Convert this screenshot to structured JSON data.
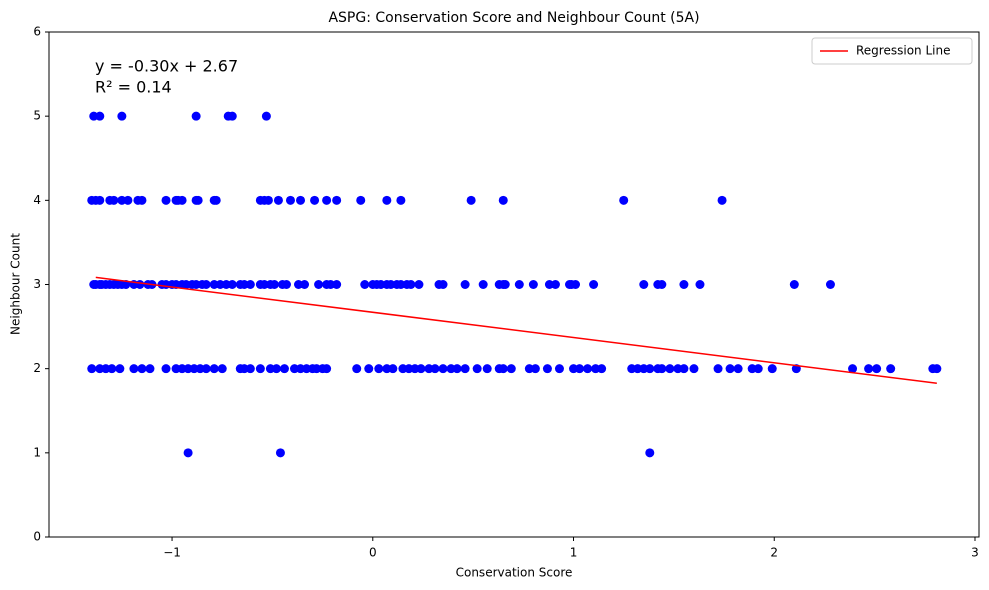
{
  "chart_data": {
    "type": "scatter",
    "title": "ASPG: Conservation Score and Neighbour Count (5A)",
    "x_label": "Conservation Score",
    "y_label": "Neighbour Count",
    "annotations": [
      "y = -0.30x + 2.67",
      "R² = 0.14"
    ],
    "color": "#0000ff",
    "x": [
      -1.39,
      -1.36,
      -1.25,
      -0.88,
      -0.72,
      -0.7,
      -0.53,
      -1.4,
      -1.38,
      -1.36,
      -1.31,
      -1.29,
      -1.25,
      -1.22,
      -1.17,
      -1.15,
      -1.03,
      -0.98,
      -0.97,
      -0.95,
      -0.88,
      -0.87,
      -0.79,
      -0.78,
      -0.56,
      -0.54,
      -0.52,
      -0.47,
      -0.41,
      -0.36,
      -0.29,
      -0.23,
      -0.18,
      -0.06,
      0.07,
      0.14,
      0.49,
      0.65,
      1.25,
      1.74,
      -0.92,
      -0.46,
      1.38,
      -1.39,
      -1.38,
      -1.36,
      -1.35,
      -1.33,
      -1.31,
      -1.29,
      -1.27,
      -1.25,
      -1.23,
      -1.19,
      -1.16,
      -1.12,
      -1.1,
      -1.05,
      -1.03,
      -1.0,
      -0.98,
      -0.95,
      -0.93,
      -0.9,
      -0.88,
      -0.85,
      -0.83,
      -0.79,
      -0.76,
      -0.73,
      -0.7,
      -0.66,
      -0.64,
      -0.61,
      -0.56,
      -0.54,
      -0.51,
      -0.49,
      -0.45,
      -0.43,
      -0.37,
      -0.34,
      -0.27,
      -0.23,
      -0.21,
      -0.18,
      -0.04,
      0.0,
      0.02,
      0.04,
      0.07,
      0.09,
      0.12,
      0.14,
      0.17,
      0.19,
      0.23,
      0.33,
      0.35,
      0.46,
      0.55,
      0.63,
      0.65,
      0.66,
      0.73,
      0.8,
      0.88,
      0.91,
      0.98,
      0.99,
      1.01,
      1.1,
      1.35,
      1.42,
      1.44,
      1.55,
      1.63,
      2.1,
      2.28,
      -1.4,
      -1.36,
      -1.33,
      -1.3,
      -1.26,
      -1.19,
      -1.15,
      -1.11,
      -1.03,
      -0.98,
      -0.95,
      -0.92,
      -0.89,
      -0.86,
      -0.83,
      -0.79,
      -0.75,
      -0.66,
      -0.64,
      -0.61,
      -0.56,
      -0.51,
      -0.48,
      -0.44,
      -0.39,
      -0.36,
      -0.33,
      -0.3,
      -0.28,
      -0.25,
      -0.23,
      -0.08,
      -0.02,
      0.03,
      0.07,
      0.1,
      0.15,
      0.18,
      0.21,
      0.24,
      0.28,
      0.31,
      0.35,
      0.39,
      0.42,
      0.46,
      0.52,
      0.57,
      0.63,
      0.65,
      0.69,
      0.78,
      0.81,
      0.87,
      0.93,
      1.0,
      1.03,
      1.07,
      1.11,
      1.14,
      1.29,
      1.32,
      1.35,
      1.38,
      1.42,
      1.44,
      1.48,
      1.52,
      1.55,
      1.6,
      1.72,
      1.78,
      1.82,
      1.89,
      1.92,
      1.99,
      2.11,
      2.39,
      2.47,
      2.51,
      2.58,
      2.79,
      2.81
    ],
    "values": [
      5,
      5,
      5,
      5,
      5,
      5,
      5,
      4,
      4,
      4,
      4,
      4,
      4,
      4,
      4,
      4,
      4,
      4,
      4,
      4,
      4,
      4,
      4,
      4,
      4,
      4,
      4,
      4,
      4,
      4,
      4,
      4,
      4,
      4,
      4,
      4,
      4,
      4,
      4,
      4,
      1,
      1,
      1,
      3,
      3,
      3,
      3,
      3,
      3,
      3,
      3,
      3,
      3,
      3,
      3,
      3,
      3,
      3,
      3,
      3,
      3,
      3,
      3,
      3,
      3,
      3,
      3,
      3,
      3,
      3,
      3,
      3,
      3,
      3,
      3,
      3,
      3,
      3,
      3,
      3,
      3,
      3,
      3,
      3,
      3,
      3,
      3,
      3,
      3,
      3,
      3,
      3,
      3,
      3,
      3,
      3,
      3,
      3,
      3,
      3,
      3,
      3,
      3,
      3,
      3,
      3,
      3,
      3,
      3,
      3,
      3,
      3,
      3,
      3,
      3,
      3,
      3,
      3,
      3,
      2,
      2,
      2,
      2,
      2,
      2,
      2,
      2,
      2,
      2,
      2,
      2,
      2,
      2,
      2,
      2,
      2,
      2,
      2,
      2,
      2,
      2,
      2,
      2,
      2,
      2,
      2,
      2,
      2,
      2,
      2,
      2,
      2,
      2,
      2,
      2,
      2,
      2,
      2,
      2,
      2,
      2,
      2,
      2,
      2,
      2,
      2,
      2,
      2,
      2,
      2,
      2,
      2,
      2,
      2,
      2,
      2,
      2,
      2,
      2,
      2,
      2,
      2,
      2,
      2,
      2,
      2,
      2,
      2,
      2,
      2,
      2,
      2,
      2,
      2,
      2,
      2,
      2,
      2,
      2,
      2,
      2,
      2
    ],
    "series": [
      {
        "name": "Regression Line",
        "color": "#ff0000",
        "x": [
          -1.38,
          2.81
        ],
        "values": [
          3.084,
          1.827
        ]
      }
    ],
    "xlim": [
      -1.613,
      3.02
    ],
    "ylim": [
      0,
      6
    ],
    "xticks": [
      {
        "value": -1,
        "label": "−1"
      },
      0,
      1,
      2,
      3
    ],
    "yticks": [
      0,
      1,
      2,
      3,
      4,
      5,
      6
    ],
    "legend": "upper right"
  }
}
